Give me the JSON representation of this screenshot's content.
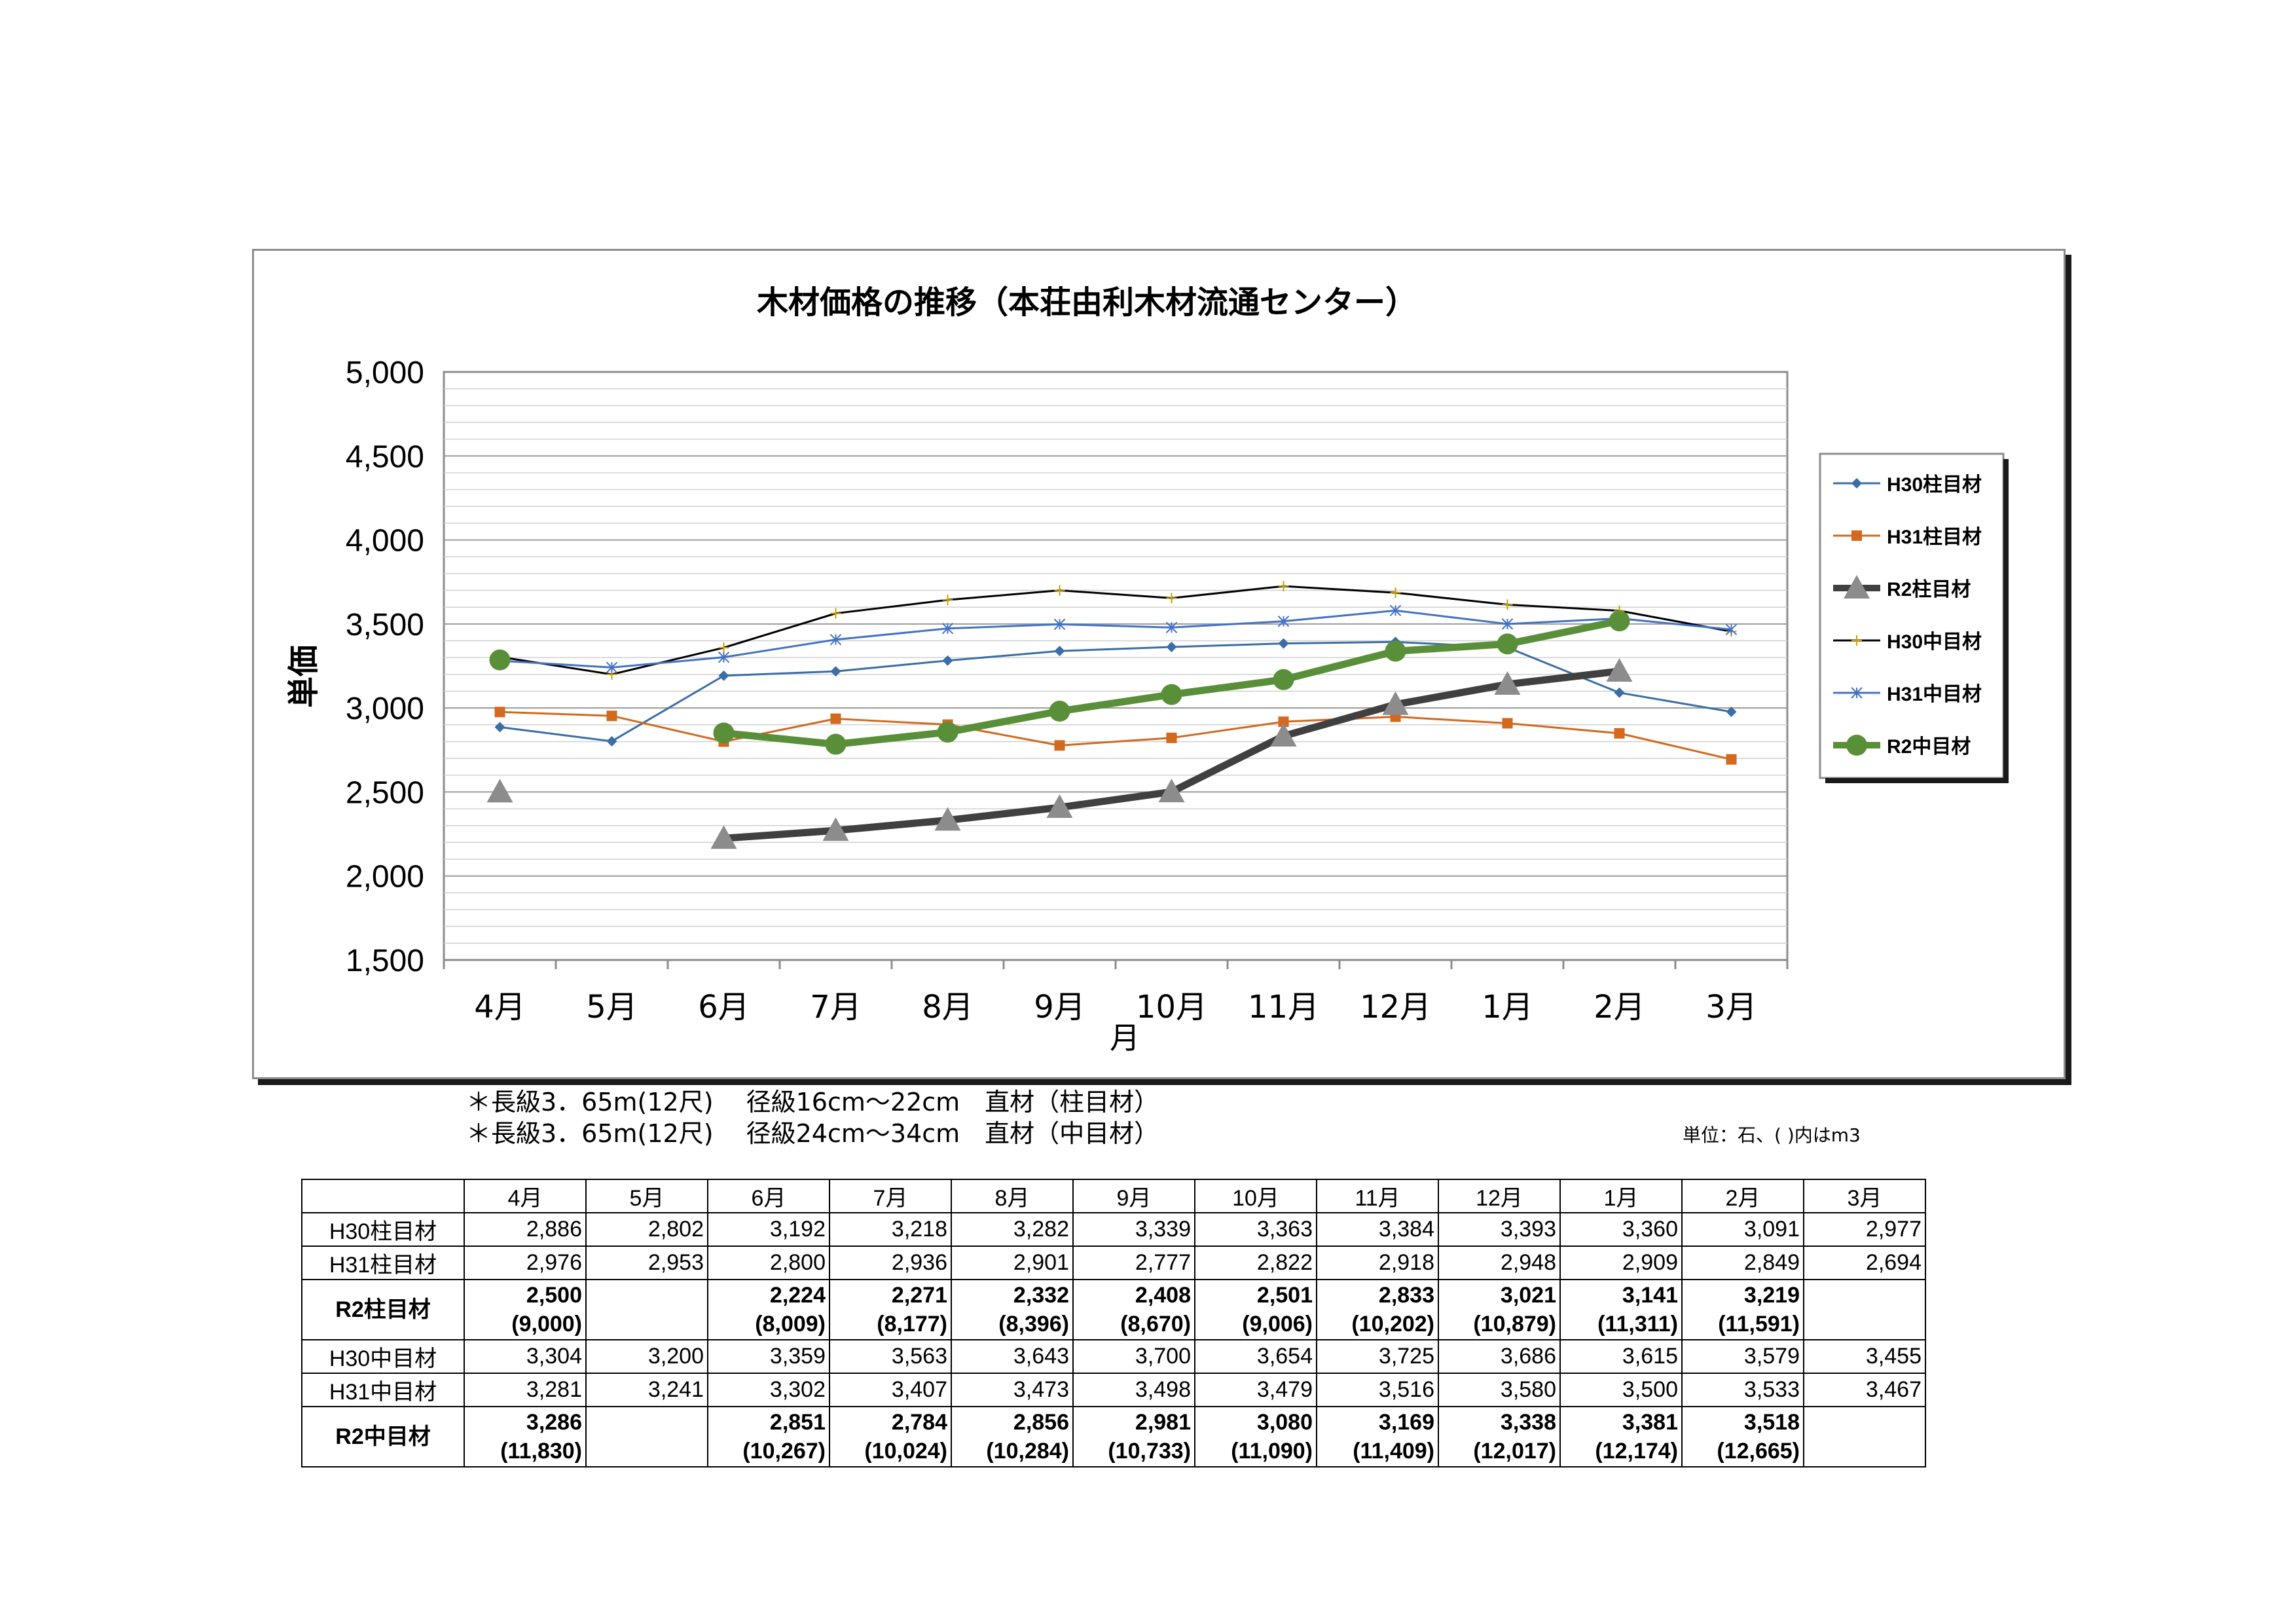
{
  "chart_data": {
    "type": "line",
    "title": "木材価格の推移（本荘由利木材流通センター）",
    "ylabel": "単価",
    "xlabel": "月",
    "categories": [
      "4月",
      "5月",
      "6月",
      "7月",
      "8月",
      "9月",
      "10月",
      "11月",
      "12月",
      "1月",
      "2月",
      "3月"
    ],
    "ylim": [
      1500,
      5000
    ],
    "yticks": [
      "5,000",
      "4,500",
      "4,000",
      "3,500",
      "3,000",
      "2,500",
      "2,000",
      "1,500"
    ],
    "ytick_values": [
      5000,
      4500,
      4000,
      3500,
      3000,
      2500,
      2000,
      1500
    ],
    "legend_position": "right",
    "series": [
      {
        "name": "H30柱目材",
        "color": "#3a6ea5",
        "marker": "diamond",
        "values": [
          2886,
          2802,
          3192,
          3218,
          3282,
          3339,
          3363,
          3384,
          3393,
          3360,
          3091,
          2977
        ]
      },
      {
        "name": "H31柱目材",
        "color": "#d2691e",
        "marker": "square",
        "values": [
          2976,
          2953,
          2800,
          2936,
          2901,
          2777,
          2822,
          2918,
          2948,
          2909,
          2849,
          2694
        ]
      },
      {
        "name": "R2柱目材",
        "color": "#404040",
        "marker": "triangle",
        "values": [
          2500,
          null,
          2224,
          2271,
          2332,
          2408,
          2501,
          2833,
          3021,
          3141,
          3219,
          null
        ]
      },
      {
        "name": "H30中目材",
        "color": "#000000",
        "marker": "plus",
        "values": [
          3304,
          3200,
          3359,
          3563,
          3643,
          3700,
          3654,
          3725,
          3686,
          3615,
          3579,
          3455
        ]
      },
      {
        "name": "H31中目材",
        "color": "#4472c4",
        "marker": "star",
        "values": [
          3281,
          3241,
          3302,
          3407,
          3473,
          3498,
          3479,
          3516,
          3580,
          3500,
          3533,
          3467
        ]
      },
      {
        "name": "R2中目材",
        "color": "#5a8f3a",
        "marker": "circle",
        "values": [
          3286,
          null,
          2851,
          2784,
          2856,
          2981,
          3080,
          3169,
          3338,
          3381,
          3518,
          null
        ]
      }
    ]
  },
  "notes": [
    "＊長級3．65m(12尺)　 径級16cm～22cm　直材（柱目材）",
    "＊長級3．65m(12尺)　 径級24cm～34cm　直材（中目材）"
  ],
  "unit_note": "単位：石、(  )内はm3",
  "table": {
    "headers": [
      "4月",
      "5月",
      "6月",
      "7月",
      "8月",
      "9月",
      "10月",
      "11月",
      "12月",
      "1月",
      "2月",
      "3月"
    ],
    "rows": [
      {
        "label": "H30柱目材",
        "bold": false,
        "values": [
          "2,886",
          "2,802",
          "3,192",
          "3,218",
          "3,282",
          "3,339",
          "3,363",
          "3,384",
          "3,393",
          "3,360",
          "3,091",
          "2,977"
        ],
        "m3": null
      },
      {
        "label": "H31柱目材",
        "bold": false,
        "values": [
          "2,976",
          "2,953",
          "2,800",
          "2,936",
          "2,901",
          "2,777",
          "2,822",
          "2,918",
          "2,948",
          "2,909",
          "2,849",
          "2,694"
        ],
        "m3": null
      },
      {
        "label": "R2柱目材",
        "bold": true,
        "values": [
          "2,500",
          "",
          "2,224",
          "2,271",
          "2,332",
          "2,408",
          "2,501",
          "2,833",
          "3,021",
          "3,141",
          "3,219",
          ""
        ],
        "m3": [
          "(9,000)",
          "",
          "(8,009)",
          "(8,177)",
          "(8,396)",
          "(8,670)",
          "(9,006)",
          "(10,202)",
          "(10,879)",
          "(11,311)",
          "(11,591)",
          ""
        ]
      },
      {
        "label": "H30中目材",
        "bold": false,
        "values": [
          "3,304",
          "3,200",
          "3,359",
          "3,563",
          "3,643",
          "3,700",
          "3,654",
          "3,725",
          "3,686",
          "3,615",
          "3,579",
          "3,455"
        ],
        "m3": null
      },
      {
        "label": "H31中目材",
        "bold": false,
        "values": [
          "3,281",
          "3,241",
          "3,302",
          "3,407",
          "3,473",
          "3,498",
          "3,479",
          "3,516",
          "3,580",
          "3,500",
          "3,533",
          "3,467"
        ],
        "m3": null
      },
      {
        "label": "R2中目材",
        "bold": true,
        "values": [
          "3,286",
          "",
          "2,851",
          "2,784",
          "2,856",
          "2,981",
          "3,080",
          "3,169",
          "3,338",
          "3,381",
          "3,518",
          ""
        ],
        "m3": [
          "(11,830)",
          "",
          "(10,267)",
          "(10,024)",
          "(10,284)",
          "(10,733)",
          "(11,090)",
          "(11,409)",
          "(12,017)",
          "(12,174)",
          "(12,665)",
          ""
        ]
      }
    ]
  }
}
